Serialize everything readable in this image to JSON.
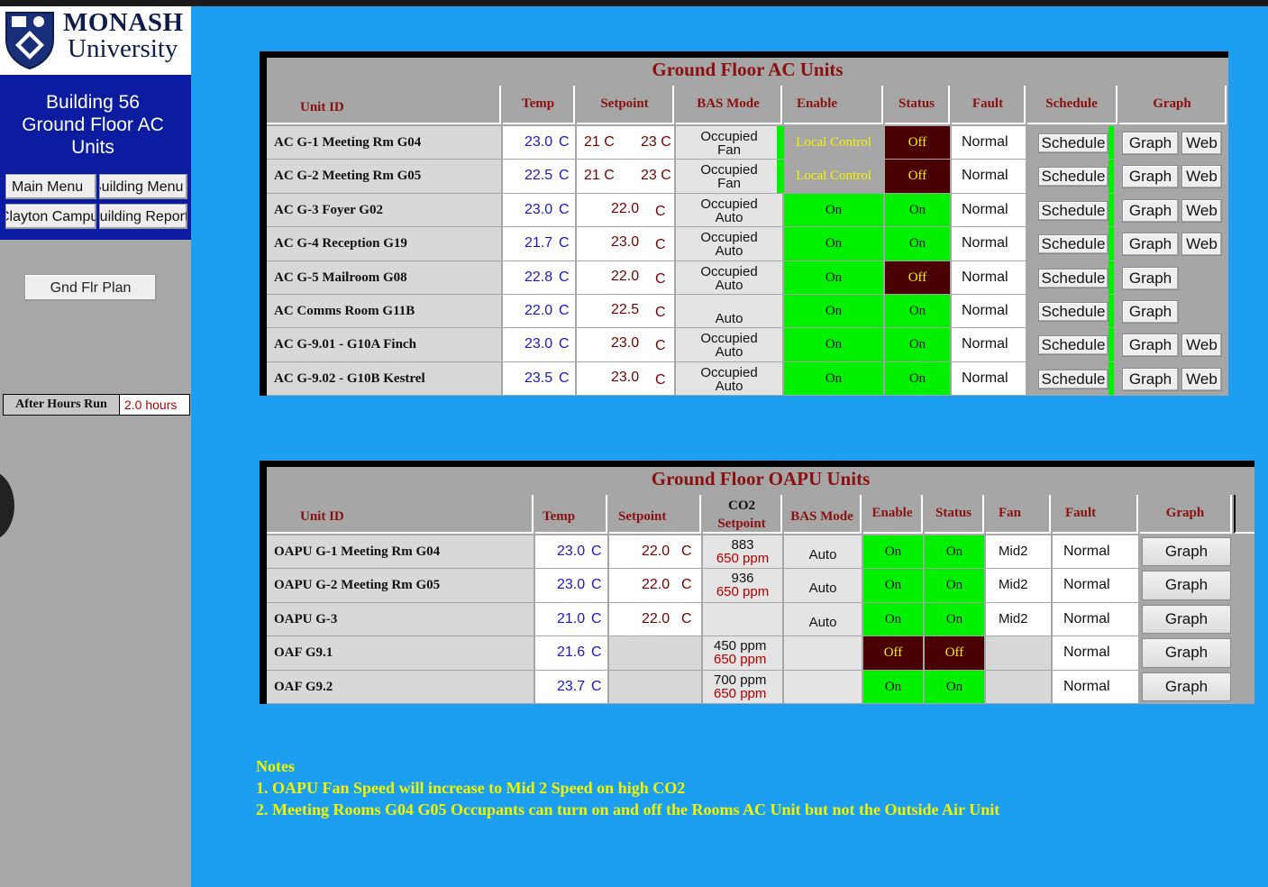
{
  "brand": {
    "name_line1": "MONASH",
    "name_line2": "University"
  },
  "sidebar": {
    "title_lines": [
      "Building 56",
      "Ground Floor AC",
      "Units"
    ],
    "nav_buttons": [
      "Main Menu",
      "Building Menu",
      "Clayton Campus",
      "Building Reports"
    ],
    "plan_button": "Gnd Flr Plan",
    "after_hours_label": "After Hours Run",
    "after_hours_value": "2.0 hours"
  },
  "ac_table": {
    "title": "Ground Floor AC Units",
    "headers": {
      "unit_id": "Unit ID",
      "temp": "Temp",
      "setpoint": "Setpoint",
      "bas_mode": "BAS Mode",
      "enable": "Enable",
      "status": "Status",
      "fault": "Fault",
      "schedule": "Schedule",
      "graph": "Graph"
    },
    "schedule_label": "Schedule",
    "graph_label": "Graph",
    "web_label": "Web",
    "rows": [
      {
        "id": "AC G-1 Meeting Rm G04",
        "temp": "23.0",
        "unit": "C",
        "sp_low": "21 C",
        "sp_high": "23 C",
        "bas1": "Occupied",
        "bas2": "Fan",
        "enable": "Local Control",
        "status": "Off",
        "fault": "Normal",
        "web": true
      },
      {
        "id": "AC G-2 Meeting Rm G05",
        "temp": "22.5",
        "unit": "C",
        "sp_low": "21 C",
        "sp_high": "23 C",
        "bas1": "Occupied",
        "bas2": "Fan",
        "enable": "Local Control",
        "status": "Off",
        "fault": "Normal",
        "web": true
      },
      {
        "id": "AC G-3 Foyer G02",
        "temp": "23.0",
        "unit": "C",
        "sp": "22.0",
        "sp_unit": "C",
        "bas1": "Occupied",
        "bas2": "Auto",
        "enable": "On",
        "status": "On",
        "fault": "Normal",
        "web": true
      },
      {
        "id": "AC G-4 Reception G19",
        "temp": "21.7",
        "unit": "C",
        "sp": "23.0",
        "sp_unit": "C",
        "bas1": "Occupied",
        "bas2": "Auto",
        "enable": "On",
        "status": "On",
        "fault": "Normal",
        "web": true
      },
      {
        "id": "AC G-5 Mailroom G08",
        "temp": "22.8",
        "unit": "C",
        "sp": "22.0",
        "sp_unit": "C",
        "bas1": "Occupied",
        "bas2": "Auto",
        "enable": "On",
        "status": "Off",
        "fault": "Normal",
        "web": false
      },
      {
        "id": "AC Comms Room G11B",
        "temp": "22.0",
        "unit": "C",
        "sp": "22.5",
        "sp_unit": "C",
        "bas1": "",
        "bas2": "Auto",
        "enable": "On",
        "status": "On",
        "fault": "Normal",
        "web": false
      },
      {
        "id": "AC G-9.01 - G10A Finch",
        "temp": "23.0",
        "unit": "C",
        "sp": "23.0",
        "sp_unit": "C",
        "bas1": "Occupied",
        "bas2": "Auto",
        "enable": "On",
        "status": "On",
        "fault": "Normal",
        "web": true
      },
      {
        "id": "AC G-9.02 - G10B Kestrel",
        "temp": "23.5",
        "unit": "C",
        "sp": "23.0",
        "sp_unit": "C",
        "bas1": "Occupied",
        "bas2": "Auto",
        "enable": "On",
        "status": "On",
        "fault": "Normal",
        "web": true
      }
    ]
  },
  "oapu_table": {
    "title": "Ground Floor OAPU Units",
    "headers": {
      "unit_id": "Unit ID",
      "temp": "Temp",
      "setpoint": "Setpoint",
      "co2_1": "CO2",
      "co2_2": "Setpoint",
      "bas_mode": "BAS Mode",
      "enable": "Enable",
      "status": "Status",
      "fan": "Fan",
      "fault": "Fault",
      "graph": "Graph"
    },
    "graph_label": "Graph",
    "rows": [
      {
        "id": "OAPU G-1 Meeting Rm G04",
        "temp": "23.0",
        "unit": "C",
        "sp": "22.0",
        "sp_unit": "C",
        "co2": "883",
        "co2_sp": "650 ppm",
        "bas": "Auto",
        "enable": "On",
        "status": "On",
        "fan": "Mid2",
        "fault": "Normal"
      },
      {
        "id": "OAPU G-2 Meeting Rm G05",
        "temp": "23.0",
        "unit": "C",
        "sp": "22.0",
        "sp_unit": "C",
        "co2": "936",
        "co2_sp": "650 ppm",
        "bas": "Auto",
        "enable": "On",
        "status": "On",
        "fan": "Mid2",
        "fault": "Normal"
      },
      {
        "id": "OAPU G-3",
        "temp": "21.0",
        "unit": "C",
        "sp": "22.0",
        "sp_unit": "C",
        "co2": "",
        "co2_sp": "",
        "bas": "Auto",
        "enable": "On",
        "status": "On",
        "fan": "Mid2",
        "fault": "Normal"
      },
      {
        "id": "OAF G9.1",
        "temp": "21.6",
        "unit": "C",
        "sp": "",
        "sp_unit": "",
        "co2": "450 ppm",
        "co2_sp": "650 ppm",
        "bas": "",
        "enable": "Off",
        "status": "Off",
        "fan": "",
        "fault": "Normal"
      },
      {
        "id": "OAF G9.2",
        "temp": "23.7",
        "unit": "C",
        "sp": "",
        "sp_unit": "",
        "co2": "700 ppm",
        "co2_sp": "650 ppm",
        "bas": "",
        "enable": "On",
        "status": "On",
        "fan": "",
        "fault": "Normal"
      }
    ]
  },
  "notes": {
    "heading": "Notes",
    "line1": "1. OAPU Fan Speed will increase to Mid 2 Speed on high CO2",
    "line2": "2. Meeting Rooms G04 G05 Occupants can turn on and off the Rooms AC Unit but not the Outside Air Unit"
  },
  "colors": {
    "background": "#1c9ff0",
    "on_green": "#00f000",
    "off_dark": "#4a0000",
    "header_red": "#8a1010",
    "notes_yellow": "#f4f400"
  }
}
